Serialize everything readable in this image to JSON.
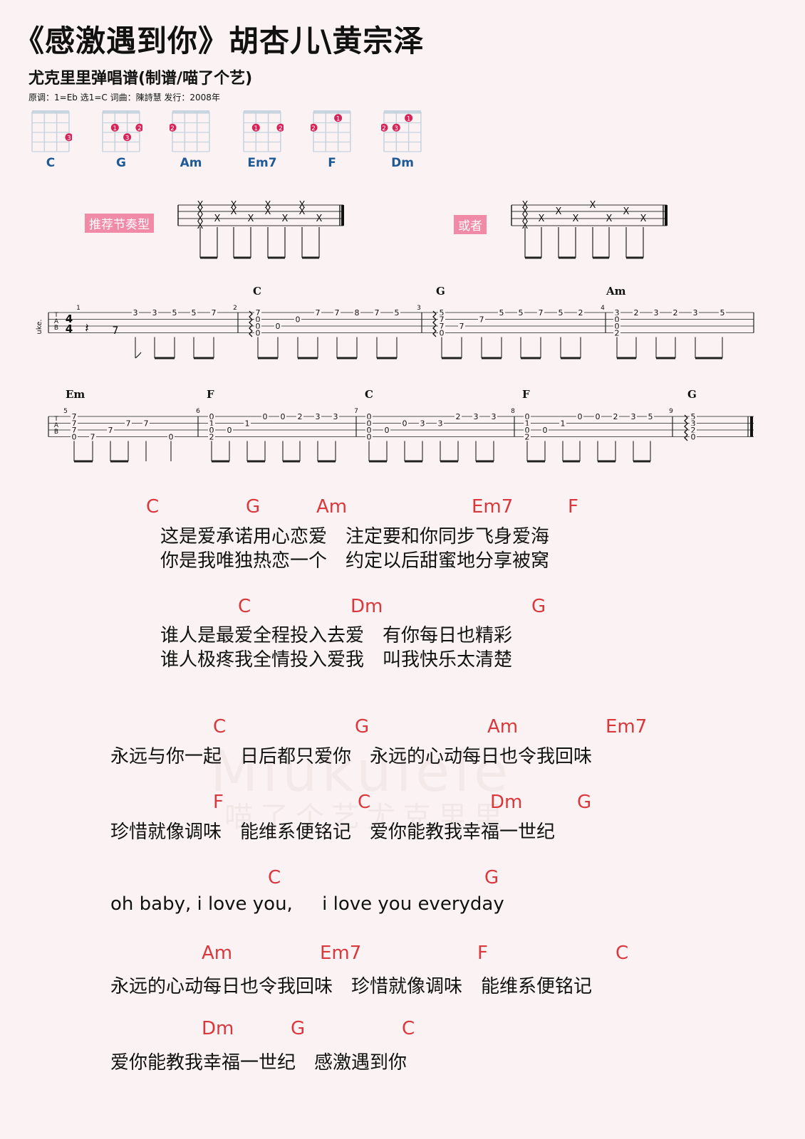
{
  "header": {
    "title": "《感激遇到你》胡杏儿\\黄宗泽",
    "subtitle": "尤克里里弹唱谱(制谱/喵了个艺)",
    "meta": "原调：1=Eb  选1=C  词曲：陳詩慧  发行：2008年"
  },
  "chords": [
    {
      "name": "C",
      "dots": [
        {
          "string": 3,
          "fret": 3,
          "finger": "3"
        }
      ]
    },
    {
      "name": "G",
      "dots": [
        {
          "string": 1,
          "fret": 2,
          "finger": "1"
        },
        {
          "string": 3,
          "fret": 2,
          "finger": "2"
        },
        {
          "string": 2,
          "fret": 3,
          "finger": "3"
        }
      ]
    },
    {
      "name": "Am",
      "dots": [
        {
          "string": 0,
          "fret": 2,
          "finger": "2"
        }
      ]
    },
    {
      "name": "Em7",
      "dots": [
        {
          "string": 1,
          "fret": 2,
          "finger": "1"
        },
        {
          "string": 3,
          "fret": 2,
          "finger": "2"
        }
      ]
    },
    {
      "name": "F",
      "dots": [
        {
          "string": 0,
          "fret": 2,
          "finger": "2"
        },
        {
          "string": 2,
          "fret": 1,
          "finger": "1"
        }
      ]
    },
    {
      "name": "Dm",
      "dots": [
        {
          "string": 0,
          "fret": 2,
          "finger": "2"
        },
        {
          "string": 1,
          "fret": 2,
          "finger": "3"
        },
        {
          "string": 2,
          "fret": 1,
          "finger": "1"
        }
      ]
    }
  ],
  "rhythm": {
    "label1": "推荐节奏型",
    "label2": "或者"
  },
  "tab": {
    "instrument": "uke.",
    "time_sig": [
      "4",
      "4"
    ],
    "row1_chords": [
      "C",
      "G",
      "Am"
    ],
    "row2_chords": [
      "Em",
      "F",
      "C",
      "F",
      "G"
    ],
    "measures": [
      "1",
      "2",
      "3",
      "4",
      "5",
      "6",
      "7",
      "8",
      "9"
    ]
  },
  "lyrics": [
    {
      "chords": [
        "C",
        "G",
        "Am",
        "Em7",
        "F"
      ],
      "lines": [
        "这是爱承诺用心恋爱　注定要和你同步飞身爱海",
        "你是我唯独热恋一个　约定以后甜蜜地分享被窝"
      ]
    },
    {
      "chords": [
        "C",
        "Dm",
        "G"
      ],
      "lines": [
        "谁人是最爱全程投入去爱　有你每日也精彩",
        "谁人极疼我全情投入爱我　叫我快乐太清楚"
      ]
    },
    {
      "chords": [
        "C",
        "G",
        "Am",
        "Em7"
      ],
      "lines": [
        "永远与你一起　日后都只爱你　永远的心动每日也令我回味"
      ]
    },
    {
      "chords": [
        "F",
        "C",
        "Dm",
        "G"
      ],
      "lines": [
        "珍惜就像调味　能维系便铭记　爱你能教我幸福一世纪"
      ]
    },
    {
      "chords": [
        "C",
        "G"
      ],
      "lines": [
        "oh baby, i love you,     i love you everyday"
      ]
    },
    {
      "chords": [
        "Am",
        "Em7",
        "F",
        "C"
      ],
      "lines": [
        "永远的心动每日也令我回味　珍惜就像调味　能维系便铭记"
      ]
    },
    {
      "chords": [
        "Dm",
        "G",
        "C"
      ],
      "lines": [
        "爱你能教我幸福一世纪　感激遇到你"
      ]
    }
  ],
  "watermark": {
    "latin": "Miukulele",
    "cn": "喵了个艺尤克里里"
  },
  "colors": {
    "chord_red": "#d9383c",
    "chord_blue": "#1e5a96",
    "dot": "#d6245a",
    "badge": "#f08aa6"
  }
}
